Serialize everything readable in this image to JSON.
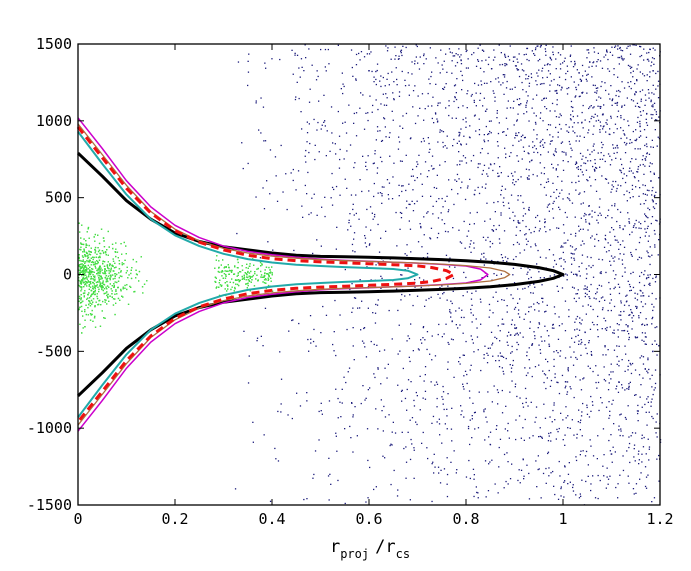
{
  "chart_data": {
    "type": "scatter",
    "title": "",
    "xlabel": {
      "main1": "r",
      "sub1": "proj",
      "main2": "/r",
      "sub2": "cs"
    },
    "ylabel": "",
    "xlim": [
      0,
      1.2
    ],
    "ylim": [
      -1500,
      1500
    ],
    "x_ticks": [
      {
        "value": 0,
        "label": "0"
      },
      {
        "value": 0.2,
        "label": "0.2"
      },
      {
        "value": 0.4,
        "label": "0.4"
      },
      {
        "value": 0.6,
        "label": "0.6"
      },
      {
        "value": 0.8,
        "label": "0.8"
      },
      {
        "value": 1,
        "label": "1"
      },
      {
        "value": 1.2,
        "label": "1.2"
      }
    ],
    "y_ticks": [
      {
        "value": 1500,
        "label": "1500"
      },
      {
        "value": 1000,
        "label": "1000"
      },
      {
        "value": 500,
        "label": "500"
      },
      {
        "value": 0,
        "label": "0"
      },
      {
        "value": -500,
        "label": "-500"
      },
      {
        "value": -1000,
        "label": "-1000"
      },
      {
        "value": -1500,
        "label": "-1500"
      }
    ],
    "grid": false,
    "scatter_groups": [
      {
        "color": "#1a1a7a",
        "description_points": "background dots filling the plot, densest in upper right",
        "count": 3200,
        "x_range": [
          0.3,
          1.2
        ],
        "y_range": [
          -1500,
          1500
        ]
      },
      {
        "color": "#44dd44",
        "description_points": "green member dots concentrated at small radius",
        "count": 1700,
        "x_range": [
          0,
          0.55
        ],
        "y_range": [
          -1100,
          1100
        ]
      }
    ],
    "series": [
      {
        "color": "#000000",
        "width": 3,
        "dash": "",
        "points": [
          [
            0,
            790
          ],
          [
            0.05,
            640
          ],
          [
            0.1,
            480
          ],
          [
            0.15,
            360
          ],
          [
            0.2,
            270
          ],
          [
            0.25,
            215
          ],
          [
            0.3,
            180
          ],
          [
            0.35,
            160
          ],
          [
            0.4,
            140
          ],
          [
            0.45,
            125
          ],
          [
            0.5,
            118
          ],
          [
            0.55,
            115
          ],
          [
            0.6,
            112
          ],
          [
            0.65,
            108
          ],
          [
            0.7,
            103
          ],
          [
            0.75,
            97
          ],
          [
            0.8,
            90
          ],
          [
            0.85,
            80
          ],
          [
            0.9,
            66
          ],
          [
            0.95,
            45
          ],
          [
            0.98,
            25
          ],
          [
            1.0,
            0
          ]
        ]
      },
      {
        "color": "#cc00cc",
        "width": 1.5,
        "dash": "",
        "points": [
          [
            0,
            1020
          ],
          [
            0.05,
            820
          ],
          [
            0.1,
            610
          ],
          [
            0.15,
            440
          ],
          [
            0.2,
            320
          ],
          [
            0.25,
            240
          ],
          [
            0.3,
            185
          ],
          [
            0.35,
            150
          ],
          [
            0.4,
            128
          ],
          [
            0.45,
            112
          ],
          [
            0.5,
            100
          ],
          [
            0.55,
            92
          ],
          [
            0.6,
            86
          ],
          [
            0.65,
            80
          ],
          [
            0.7,
            74
          ],
          [
            0.75,
            66
          ],
          [
            0.8,
            55
          ],
          [
            0.83,
            35
          ],
          [
            0.845,
            0
          ]
        ]
      },
      {
        "color": "#b07040",
        "width": 1.3,
        "dash": "",
        "points": [
          [
            0,
            980
          ],
          [
            0.05,
            780
          ],
          [
            0.1,
            580
          ],
          [
            0.15,
            410
          ],
          [
            0.2,
            295
          ],
          [
            0.25,
            218
          ],
          [
            0.3,
            170
          ],
          [
            0.35,
            140
          ],
          [
            0.4,
            120
          ],
          [
            0.45,
            106
          ],
          [
            0.5,
            96
          ],
          [
            0.55,
            90
          ],
          [
            0.6,
            85
          ],
          [
            0.65,
            80
          ],
          [
            0.7,
            75
          ],
          [
            0.75,
            68
          ],
          [
            0.8,
            58
          ],
          [
            0.85,
            42
          ],
          [
            0.88,
            20
          ],
          [
            0.89,
            0
          ]
        ]
      },
      {
        "color": "#ee1111",
        "width": 3,
        "dash": "8,5",
        "points": [
          [
            0,
            960
          ],
          [
            0.05,
            760
          ],
          [
            0.1,
            560
          ],
          [
            0.15,
            400
          ],
          [
            0.2,
            285
          ],
          [
            0.25,
            210
          ],
          [
            0.3,
            160
          ],
          [
            0.35,
            125
          ],
          [
            0.4,
            103
          ],
          [
            0.45,
            90
          ],
          [
            0.5,
            82
          ],
          [
            0.55,
            76
          ],
          [
            0.6,
            70
          ],
          [
            0.65,
            64
          ],
          [
            0.7,
            56
          ],
          [
            0.73,
            45
          ],
          [
            0.76,
            25
          ],
          [
            0.775,
            0
          ]
        ]
      },
      {
        "color": "#22aaaa",
        "width": 2,
        "dash": "",
        "points": [
          [
            0,
            930
          ],
          [
            0.05,
            720
          ],
          [
            0.1,
            520
          ],
          [
            0.15,
            360
          ],
          [
            0.2,
            255
          ],
          [
            0.25,
            185
          ],
          [
            0.3,
            135
          ],
          [
            0.35,
            100
          ],
          [
            0.4,
            78
          ],
          [
            0.45,
            64
          ],
          [
            0.5,
            55
          ],
          [
            0.55,
            48
          ],
          [
            0.6,
            42
          ],
          [
            0.65,
            36
          ],
          [
            0.68,
            25
          ],
          [
            0.7,
            0
          ]
        ]
      }
    ]
  }
}
